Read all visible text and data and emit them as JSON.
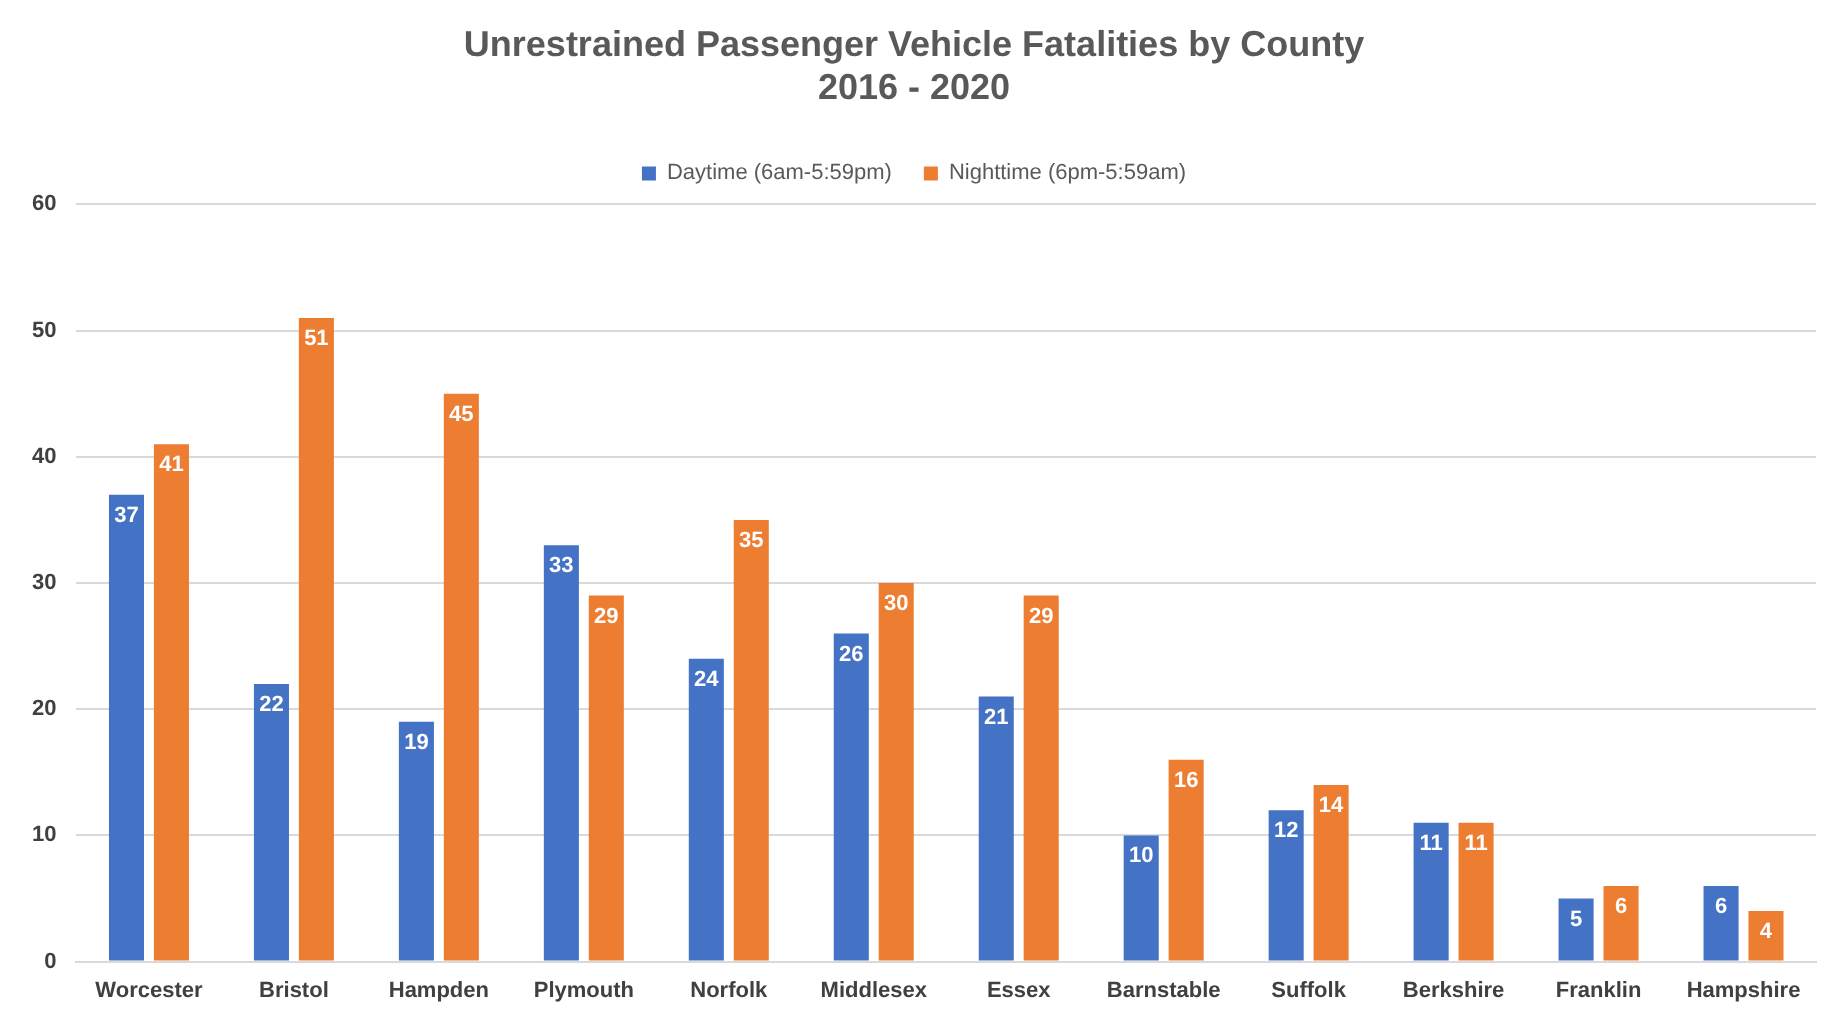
{
  "chart_data": {
    "type": "bar",
    "title": "Unrestrained Passenger Vehicle Fatalities by County",
    "subtitle": "2016 - 2020",
    "categories": [
      "Worcester",
      "Bristol",
      "Hampden",
      "Plymouth",
      "Norfolk",
      "Middlesex",
      "Essex",
      "Barnstable",
      "Suffolk",
      "Berkshire",
      "Franklin",
      "Hampshire"
    ],
    "series": [
      {
        "name": "Daytime (6am-5:59pm)",
        "color": "#4472c4",
        "values": [
          37,
          22,
          19,
          33,
          24,
          26,
          21,
          10,
          12,
          11,
          5,
          6
        ]
      },
      {
        "name": "Nighttime (6pm-5:59am)",
        "color": "#ed7d31",
        "values": [
          41,
          51,
          45,
          29,
          35,
          30,
          29,
          16,
          14,
          11,
          6,
          4
        ]
      }
    ],
    "ylim": [
      0,
      60
    ],
    "yticks": [
      0,
      10,
      20,
      30,
      40,
      50,
      60
    ],
    "grid": "y",
    "legend": "top",
    "data_labels": true
  }
}
